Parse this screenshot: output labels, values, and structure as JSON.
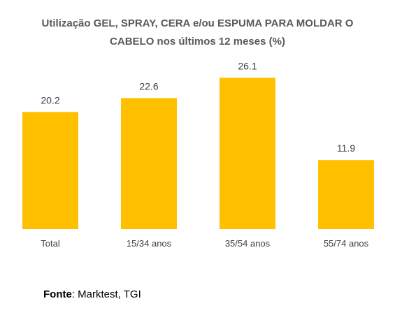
{
  "chart_data": {
    "type": "bar",
    "title_lines": [
      "Utilização GEL, SPRAY, CERA e/ou ESPUMA PARA MOLDAR O",
      "CABELO nos últimos 12 meses (%)"
    ],
    "categories": [
      "Total",
      "15/34 anos",
      "35/54 anos",
      "55/74 anos"
    ],
    "values": [
      20.2,
      22.6,
      26.1,
      11.9
    ],
    "bar_color": "#FFC000",
    "ylim": [
      0,
      30
    ],
    "grid": false,
    "legend": "none"
  },
  "source": {
    "label": "Fonte",
    "text": ": Marktest, TGI"
  }
}
